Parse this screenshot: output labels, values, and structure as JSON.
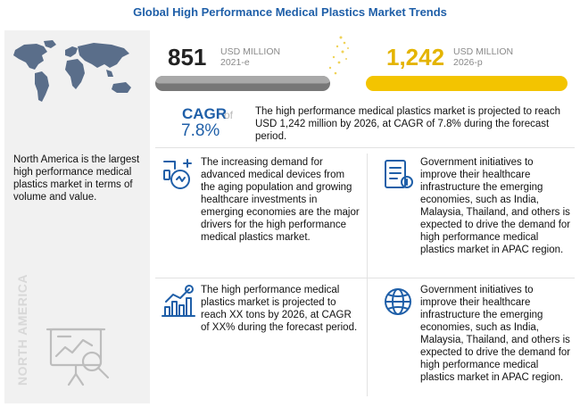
{
  "title": "Global High Performance Medical Plastics Market Trends",
  "left": {
    "description": "North America is the largest high performance medical plastics market in terms of volume and value.",
    "region_label": "NORTH AMERICA"
  },
  "stats": {
    "start": {
      "value": "851",
      "unit": "USD MILLION",
      "year": "2021-e"
    },
    "end": {
      "value": "1,242",
      "unit": "USD MILLION",
      "year": "2026-p"
    }
  },
  "cagr": {
    "label": "CAGR",
    "of": "of",
    "value": "7.8%",
    "text": "The high performance medical plastics market is projected to reach USD 1,242 million by 2026, at CAGR of 7.8% during the forecast period."
  },
  "blocks": [
    {
      "icon": "medical-devices-icon",
      "text": "The increasing demand for advanced medical devices from the aging population and growing healthcare investments in emerging economies are the major drivers for the high performance medical plastics market."
    },
    {
      "icon": "government-document-icon",
      "text": "Government initiatives to improve their healthcare infrastructure the emerging economies, such as India, Malaysia, Thailand, and others is expected to drive the demand for high performance medical plastics market in APAC region."
    },
    {
      "icon": "growth-chart-icon",
      "text": "The high performance medical plastics market is projected to reach XX tons by 2026, at CAGR of XX% during the forecast period."
    },
    {
      "icon": "globe-icon",
      "text": "Government initiatives to improve their healthcare infrastructure the emerging economies, such as India, Malaysia, Thailand, and others is expected to drive the demand for high performance medical plastics market in APAC region."
    }
  ],
  "colors": {
    "accent_blue": "#1f5fa8",
    "accent_yellow": "#f3c400",
    "bar_grey": "#777777"
  }
}
